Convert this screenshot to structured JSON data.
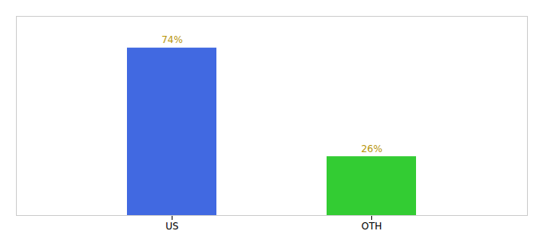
{
  "chart_data": {
    "type": "bar",
    "categories": [
      "US",
      "OTH"
    ],
    "values": [
      74,
      26
    ],
    "value_labels": [
      "74%",
      "26%"
    ],
    "colors": [
      "#4169e1",
      "#33cc33"
    ],
    "ylim": [
      0,
      88
    ],
    "data_labels": true,
    "tick_labels": "x"
  }
}
